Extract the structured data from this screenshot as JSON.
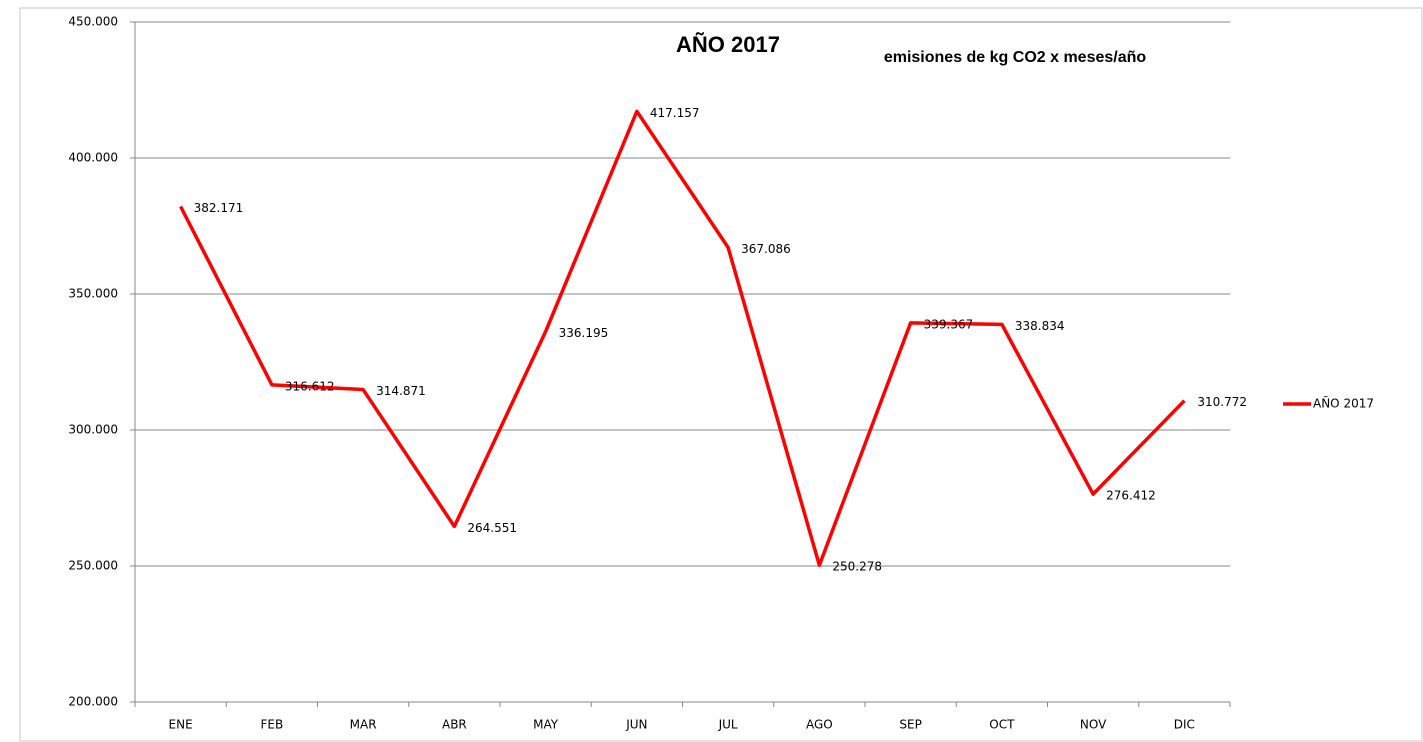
{
  "chart_data": {
    "type": "line",
    "title": "AÑO 2017",
    "subtitle": "emisiones de kg CO2 x meses/año",
    "categories": [
      "ENE",
      "FEB",
      "MAR",
      "ABR",
      "MAY",
      "JUN",
      "JUL",
      "AGO",
      "SEP",
      "OCT",
      "NOV",
      "DIC"
    ],
    "series": [
      {
        "name": "AÑO 2017",
        "color": "#ff0000",
        "values": [
          382171,
          316612,
          314871,
          264551,
          336195,
          417157,
          367086,
          250278,
          339367,
          338834,
          276412,
          310772
        ],
        "value_labels": [
          "382.171",
          "316.612",
          "314.871",
          "264.551",
          "336.195",
          "417.157",
          "367.086",
          "250.278",
          "339.367",
          "338.834",
          "276.412",
          "310.772"
        ]
      }
    ],
    "ylim": [
      200000,
      450000
    ],
    "yticks": [
      {
        "value": 200000,
        "label": "200.000"
      },
      {
        "value": 250000,
        "label": "250.000"
      },
      {
        "value": 300000,
        "label": "300.000"
      },
      {
        "value": 350000,
        "label": "350.000"
      },
      {
        "value": 400000,
        "label": "400.000"
      },
      {
        "value": 450000,
        "label": "450.000"
      }
    ],
    "grid": true,
    "legend": "right"
  }
}
